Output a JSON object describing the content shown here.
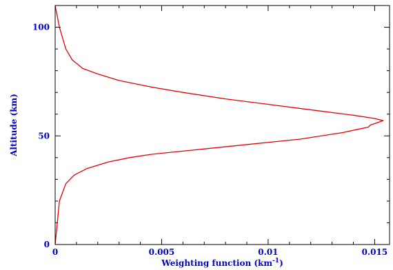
{
  "chart_data": {
    "type": "line",
    "xlabel": "Weighting function (km",
    "xlabel_superscript": "-1",
    "xlabel_suffix": ")",
    "ylabel": "Altitude (km)",
    "xlim": [
      0,
      0.0157
    ],
    "ylim": [
      0,
      110
    ],
    "x_ticks": [
      {
        "value": 0,
        "label": "0"
      },
      {
        "value": 0.005,
        "label": "0.005"
      },
      {
        "value": 0.01,
        "label": "0.01"
      },
      {
        "value": 0.015,
        "label": "0.015"
      }
    ],
    "y_ticks": [
      {
        "value": 0,
        "label": "0"
      },
      {
        "value": 50,
        "label": "50"
      },
      {
        "value": 100,
        "label": "100"
      }
    ],
    "grid": false,
    "series": [
      {
        "color": "#e00000",
        "points": [
          [
            0.0,
            0
          ],
          [
            0.0001,
            10
          ],
          [
            0.0002,
            20
          ],
          [
            0.0005,
            28
          ],
          [
            0.0009,
            32
          ],
          [
            0.0015,
            35
          ],
          [
            0.0025,
            38
          ],
          [
            0.0035,
            40
          ],
          [
            0.0045,
            41.5
          ],
          [
            0.006,
            43
          ],
          [
            0.008,
            45
          ],
          [
            0.01,
            47
          ],
          [
            0.0115,
            48.5
          ],
          [
            0.0125,
            50
          ],
          [
            0.0135,
            51.5
          ],
          [
            0.0142,
            53
          ],
          [
            0.0147,
            54
          ],
          [
            0.0148,
            55
          ],
          [
            0.0151,
            56
          ],
          [
            0.0154,
            57
          ],
          [
            0.015,
            58
          ],
          [
            0.014,
            59.5
          ],
          [
            0.012,
            62
          ],
          [
            0.01,
            64.5
          ],
          [
            0.008,
            67
          ],
          [
            0.006,
            70
          ],
          [
            0.0045,
            72.5
          ],
          [
            0.003,
            75.5
          ],
          [
            0.002,
            78.5
          ],
          [
            0.0013,
            81
          ],
          [
            0.0008,
            85
          ],
          [
            0.0005,
            90
          ],
          [
            0.0002,
            100
          ],
          [
            0.0,
            110
          ]
        ]
      }
    ],
    "colors": {
      "axes": "#000000",
      "labels": "#0000cc"
    }
  }
}
